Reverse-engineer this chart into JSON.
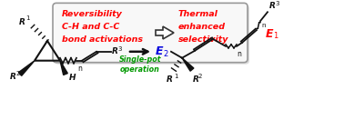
{
  "bg_color": "#ffffff",
  "box_text_left": [
    "Reversibility",
    "C-H and C-C",
    "bond activations"
  ],
  "box_text_right": [
    "Thermal",
    "enhanced",
    "selectivity"
  ],
  "red_color": "#ff0000",
  "blue_color": "#0000dd",
  "green_color": "#009900",
  "blk_color": "#111111",
  "label_R1_left": "R",
  "label_R1_left_sup": "1",
  "label_R2_left": "R",
  "label_R2_left_sup": "2",
  "label_R3_left": "R",
  "label_R3_left_sup": "3",
  "label_H": "H",
  "label_n": "n",
  "label_E1": "E",
  "label_E1_sup": "1",
  "label_E2": "E",
  "label_E2_sup": "2",
  "label_R1_right": "R",
  "label_R1_right_sup": "1",
  "label_R2_right": "R",
  "label_R2_right_sup": "2",
  "label_R3_top": "R",
  "label_R3_top_sup": "3",
  "label_single_pot": "Single-pot\noperation"
}
